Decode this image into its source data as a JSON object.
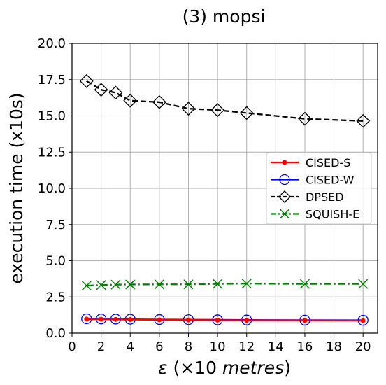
{
  "chart_data": {
    "type": "line",
    "title": "(3) mopsi",
    "xlabel_symbol": "ε",
    "xlabel_rest": " (×10 ",
    "xlabel_unit": "metres",
    "xlabel_close": ")",
    "ylabel": "execution time (x10s)",
    "xlim": [
      0,
      21
    ],
    "ylim": [
      0,
      20
    ],
    "xticks": [
      0,
      2,
      4,
      6,
      8,
      10,
      12,
      14,
      16,
      18,
      20
    ],
    "yticks": [
      "0.0",
      "2.5",
      "5.0",
      "7.5",
      "10.0",
      "12.5",
      "15.0",
      "17.5",
      "20.0"
    ],
    "grid": true,
    "legend_position": "center-right",
    "x": [
      1,
      2,
      3,
      4,
      6,
      8,
      10,
      12,
      16,
      20
    ],
    "series": [
      {
        "name": "CISED-S",
        "color": "#ff0000",
        "marker": "dot",
        "dash": "solid",
        "values": [
          0.97,
          0.96,
          0.95,
          0.94,
          0.92,
          0.91,
          0.9,
          0.89,
          0.88,
          0.87
        ]
      },
      {
        "name": "CISED-W",
        "color": "#0000ff",
        "marker": "circle",
        "dash": "solid",
        "values": [
          0.99,
          0.98,
          0.97,
          0.96,
          0.94,
          0.93,
          0.92,
          0.91,
          0.9,
          0.89
        ]
      },
      {
        "name": "DPSED",
        "color": "#000000",
        "marker": "diamond",
        "dash": "dashed",
        "values": [
          17.4,
          16.8,
          16.6,
          16.05,
          15.95,
          15.5,
          15.4,
          15.2,
          14.8,
          14.65
        ]
      },
      {
        "name": "SQUISH-E",
        "color": "#008000",
        "marker": "x",
        "dash": "dashdot",
        "values": [
          3.28,
          3.32,
          3.35,
          3.36,
          3.37,
          3.37,
          3.4,
          3.42,
          3.4,
          3.4
        ]
      }
    ]
  }
}
